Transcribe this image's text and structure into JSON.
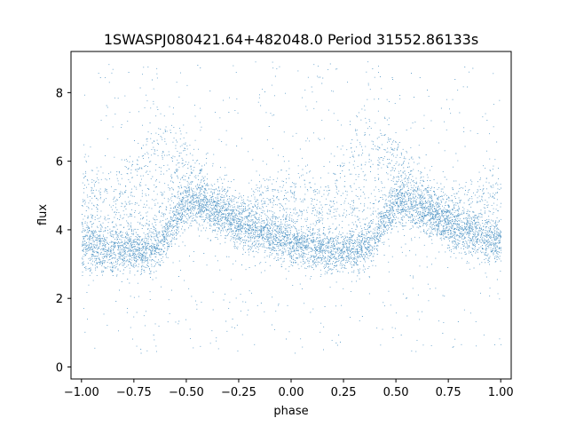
{
  "chart_data": {
    "type": "scatter",
    "title": "1SWASPJ080421.64+482048.0 Period 31552.86133s",
    "xlabel": "phase",
    "ylabel": "flux",
    "xlim": [
      -1.05,
      1.05
    ],
    "ylim": [
      -0.35,
      9.2
    ],
    "xticks": [
      -1.0,
      -0.75,
      -0.5,
      -0.25,
      0.0,
      0.25,
      0.5,
      0.75,
      1.0
    ],
    "xtick_labels": [
      "−1.00",
      "−0.75",
      "−0.50",
      "−0.25",
      "0.00",
      "0.25",
      "0.50",
      "0.75",
      "1.00"
    ],
    "yticks": [
      0,
      2,
      4,
      6,
      8
    ],
    "ytick_labels": [
      "0",
      "2",
      "4",
      "6",
      "8"
    ],
    "grid": false,
    "point_color": "#1f77b4",
    "series": [
      {
        "phase_profile": [
          {
            "x": -1.0,
            "y": 3.6
          },
          {
            "x": -0.95,
            "y": 3.5
          },
          {
            "x": -0.875,
            "y": 3.4
          },
          {
            "x": -0.8,
            "y": 3.35
          },
          {
            "x": -0.7,
            "y": 3.4
          },
          {
            "x": -0.62,
            "y": 3.6
          },
          {
            "x": -0.55,
            "y": 4.3
          },
          {
            "x": -0.5,
            "y": 4.8
          },
          {
            "x": -0.4,
            "y": 4.6
          },
          {
            "x": -0.3,
            "y": 4.3
          },
          {
            "x": -0.2,
            "y": 4.0
          },
          {
            "x": -0.1,
            "y": 3.8
          },
          {
            "x": 0.0,
            "y": 3.6
          }
        ],
        "upper_branch": [
          {
            "x": -0.95,
            "y": 5.6
          },
          {
            "x": -0.85,
            "y": 5.2
          },
          {
            "x": -0.75,
            "y": 6.3
          },
          {
            "x": -0.65,
            "y": 7.5
          },
          {
            "x": -0.55,
            "y": 6.8
          },
          {
            "x": -0.45,
            "y": 6.0
          },
          {
            "x": -0.35,
            "y": 5.2
          },
          {
            "x": -0.25,
            "y": 4.7
          },
          {
            "x": -0.1,
            "y": 5.3
          },
          {
            "x": 0.0,
            "y": 5.6
          }
        ],
        "range": {
          "min": 0.0,
          "max": 9.1
        }
      }
    ]
  }
}
